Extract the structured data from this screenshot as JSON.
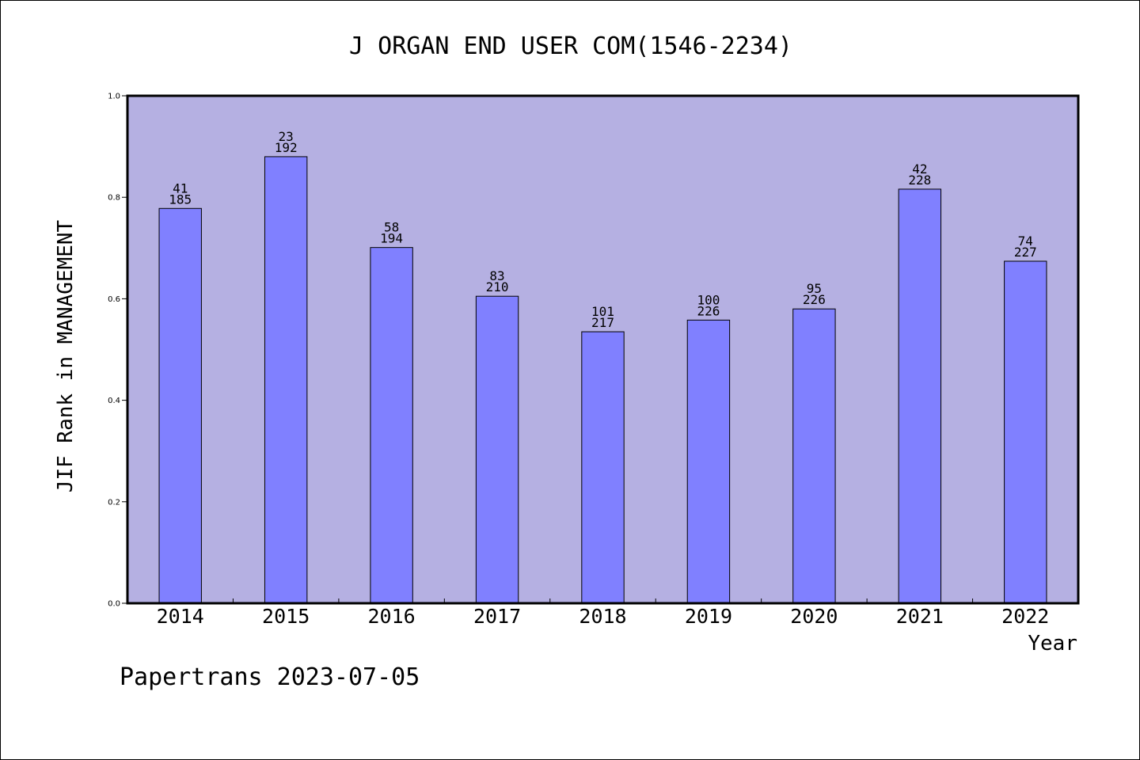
{
  "chart_data": {
    "type": "bar",
    "title": "J ORGAN END USER COM(1546-2234)",
    "xlabel": "Year",
    "ylabel": "JIF Rank in MANAGEMENT",
    "footer": "Papertrans 2023-07-05",
    "categories": [
      "2014",
      "2015",
      "2016",
      "2017",
      "2018",
      "2019",
      "2020",
      "2021",
      "2022"
    ],
    "values": [
      0.778,
      0.88,
      0.701,
      0.605,
      0.535,
      0.558,
      0.58,
      0.816,
      0.674
    ],
    "rank_labels": [
      "41",
      "23",
      "58",
      "83",
      "101",
      "100",
      "95",
      "42",
      "74"
    ],
    "total_labels": [
      "185",
      "192",
      "194",
      "210",
      "217",
      "226",
      "226",
      "228",
      "227"
    ],
    "ylim": [
      0.0,
      1.0
    ],
    "yticks": [
      "0.0",
      "0.2",
      "0.4",
      "0.6",
      "0.8",
      "1.0"
    ],
    "grid": false,
    "legend": "none",
    "colors": {
      "plot_background": "#b5b0e2",
      "bar_fill": "#8080ff",
      "bar_edge": "#000000",
      "frame": "#000000"
    }
  }
}
